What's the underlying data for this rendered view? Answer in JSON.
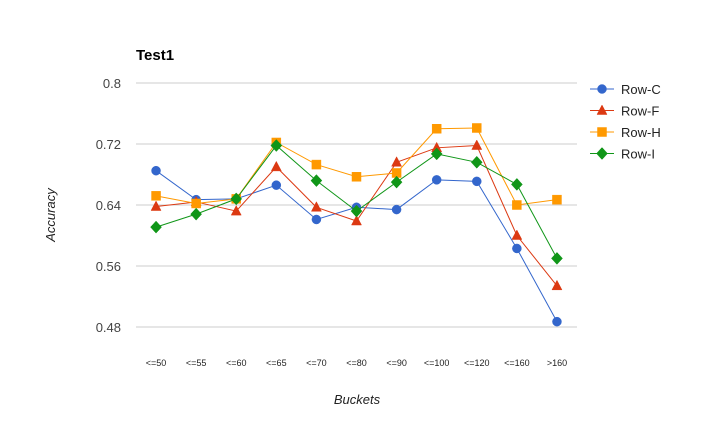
{
  "chart_data": {
    "type": "line",
    "title": "Test1",
    "xlabel": "Buckets",
    "ylabel": "Accuracy",
    "ylim": [
      0.44,
      0.8
    ],
    "yticks": [
      0.48,
      0.56,
      0.64,
      0.72,
      0.8
    ],
    "ytick_labels": [
      "0.48",
      "0.56",
      "0.64",
      "0.72",
      "0.8"
    ],
    "grid": true,
    "legend_position": "right",
    "categories": [
      "<=50",
      "<=55",
      "<=60",
      "<=65",
      "<=70",
      "<=80",
      "<=90",
      "<=100",
      "<=120",
      "<=160",
      ">160"
    ],
    "series": [
      {
        "name": "Row-C",
        "color": "#3366cc",
        "marker": "circle",
        "values": [
          0.685,
          0.647,
          0.648,
          0.666,
          0.621,
          0.637,
          0.634,
          0.673,
          0.671,
          0.583,
          0.487
        ]
      },
      {
        "name": "Row-F",
        "color": "#dc3912",
        "marker": "triangle",
        "values": [
          0.638,
          0.644,
          0.632,
          0.69,
          0.637,
          0.619,
          0.696,
          0.715,
          0.718,
          0.6,
          0.534
        ]
      },
      {
        "name": "Row-H",
        "color": "#ff9900",
        "marker": "square",
        "values": [
          0.652,
          0.642,
          0.648,
          0.722,
          0.693,
          0.677,
          0.682,
          0.74,
          0.741,
          0.64,
          0.647
        ]
      },
      {
        "name": "Row-I",
        "color": "#109618",
        "marker": "diamond",
        "values": [
          0.611,
          0.628,
          0.648,
          0.718,
          0.672,
          0.632,
          0.67,
          0.707,
          0.696,
          0.667,
          0.57
        ]
      }
    ]
  }
}
